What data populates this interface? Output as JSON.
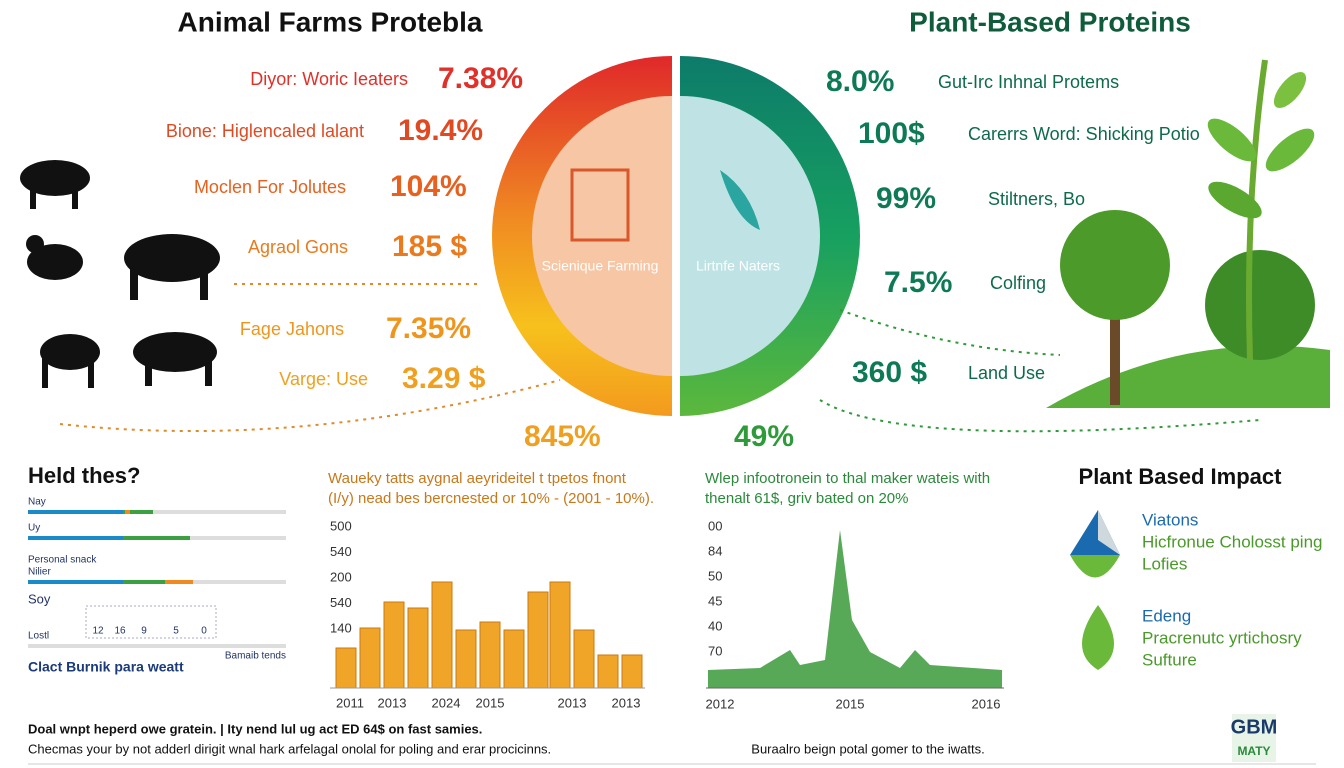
{
  "left": {
    "title": "Animal Farms Protebla",
    "items": [
      {
        "label": "Diyor: Woric Ieaters",
        "value": "7.38%"
      },
      {
        "label": "Bione: Higlencaled lalant",
        "value": "19.4%"
      },
      {
        "label": "Moclen For Jolutes",
        "value": "104%"
      },
      {
        "label": "Agraol Gons",
        "value": "185 $"
      },
      {
        "label": "Fage Jahons",
        "value": "7.35%"
      },
      {
        "label": "Varge: Use",
        "value": "3.29 $"
      }
    ],
    "total": "845%",
    "center": "Scienique Farming"
  },
  "right": {
    "title": "Plant-Based Proteins",
    "items": [
      {
        "label": "Gut-Irc Inhnal Protems",
        "value": "8.0%"
      },
      {
        "label": "Carerrs Word: Shicking Potio",
        "value": "100$"
      },
      {
        "label": "Stiltners, Bo",
        "value": "99%"
      },
      {
        "label": "Colfing",
        "value": "7.5%"
      },
      {
        "label": "Land Use",
        "value": "360 $"
      }
    ],
    "total": "49%",
    "center": "Lirtnfe Naters"
  },
  "held": {
    "title": "Held thes?",
    "bars": [
      "Nay",
      "Uy",
      "Personal snack",
      "Nilier",
      "Soy",
      "Lostl"
    ],
    "numbers": [
      "12",
      "16",
      "9",
      "5",
      "0"
    ],
    "note": "Bamaib tends",
    "caption": "Clact Burnik para weatt"
  },
  "coins": {
    "caption": [
      "Waueky tatts aygnal aeyrideitel t tpetos fnont",
      "(I/y) nead bes bercnested or 10% - (2001 - 10%)."
    ],
    "ylabels": [
      "500",
      "540",
      "200",
      "540",
      "140"
    ],
    "xlabels": [
      "2011",
      "2013",
      "2024",
      "2015",
      "2013",
      "2013"
    ]
  },
  "line": {
    "caption": [
      "Wlep infootronein to thal maker wateis with",
      "thenalt 61$, griv bated on 20%"
    ],
    "ylabels": [
      "00",
      "84",
      "50",
      "45",
      "40",
      "70"
    ],
    "xlabels": [
      "2012",
      "2015",
      "2016"
    ]
  },
  "impact": {
    "title": "Plant Based Impact",
    "group1": [
      "Viatons",
      "Hicfronue Cholosst ping",
      "Lofies"
    ],
    "group2": [
      "Edeng",
      "Pracrenutc yrtichosry",
      "Sufture"
    ]
  },
  "footer": {
    "left": [
      "Doal wnpt heperd owe gratein. | Ity nend lul ug act ED 64$ on fast samies.",
      "Checmas your by not adderl dirigit wnal hark arfelagal onolal for poling and erar procicinns."
    ],
    "center": "Buraalro beign potal gomer to the iwatts.",
    "logo": [
      "GBM",
      "MATY"
    ]
  }
}
